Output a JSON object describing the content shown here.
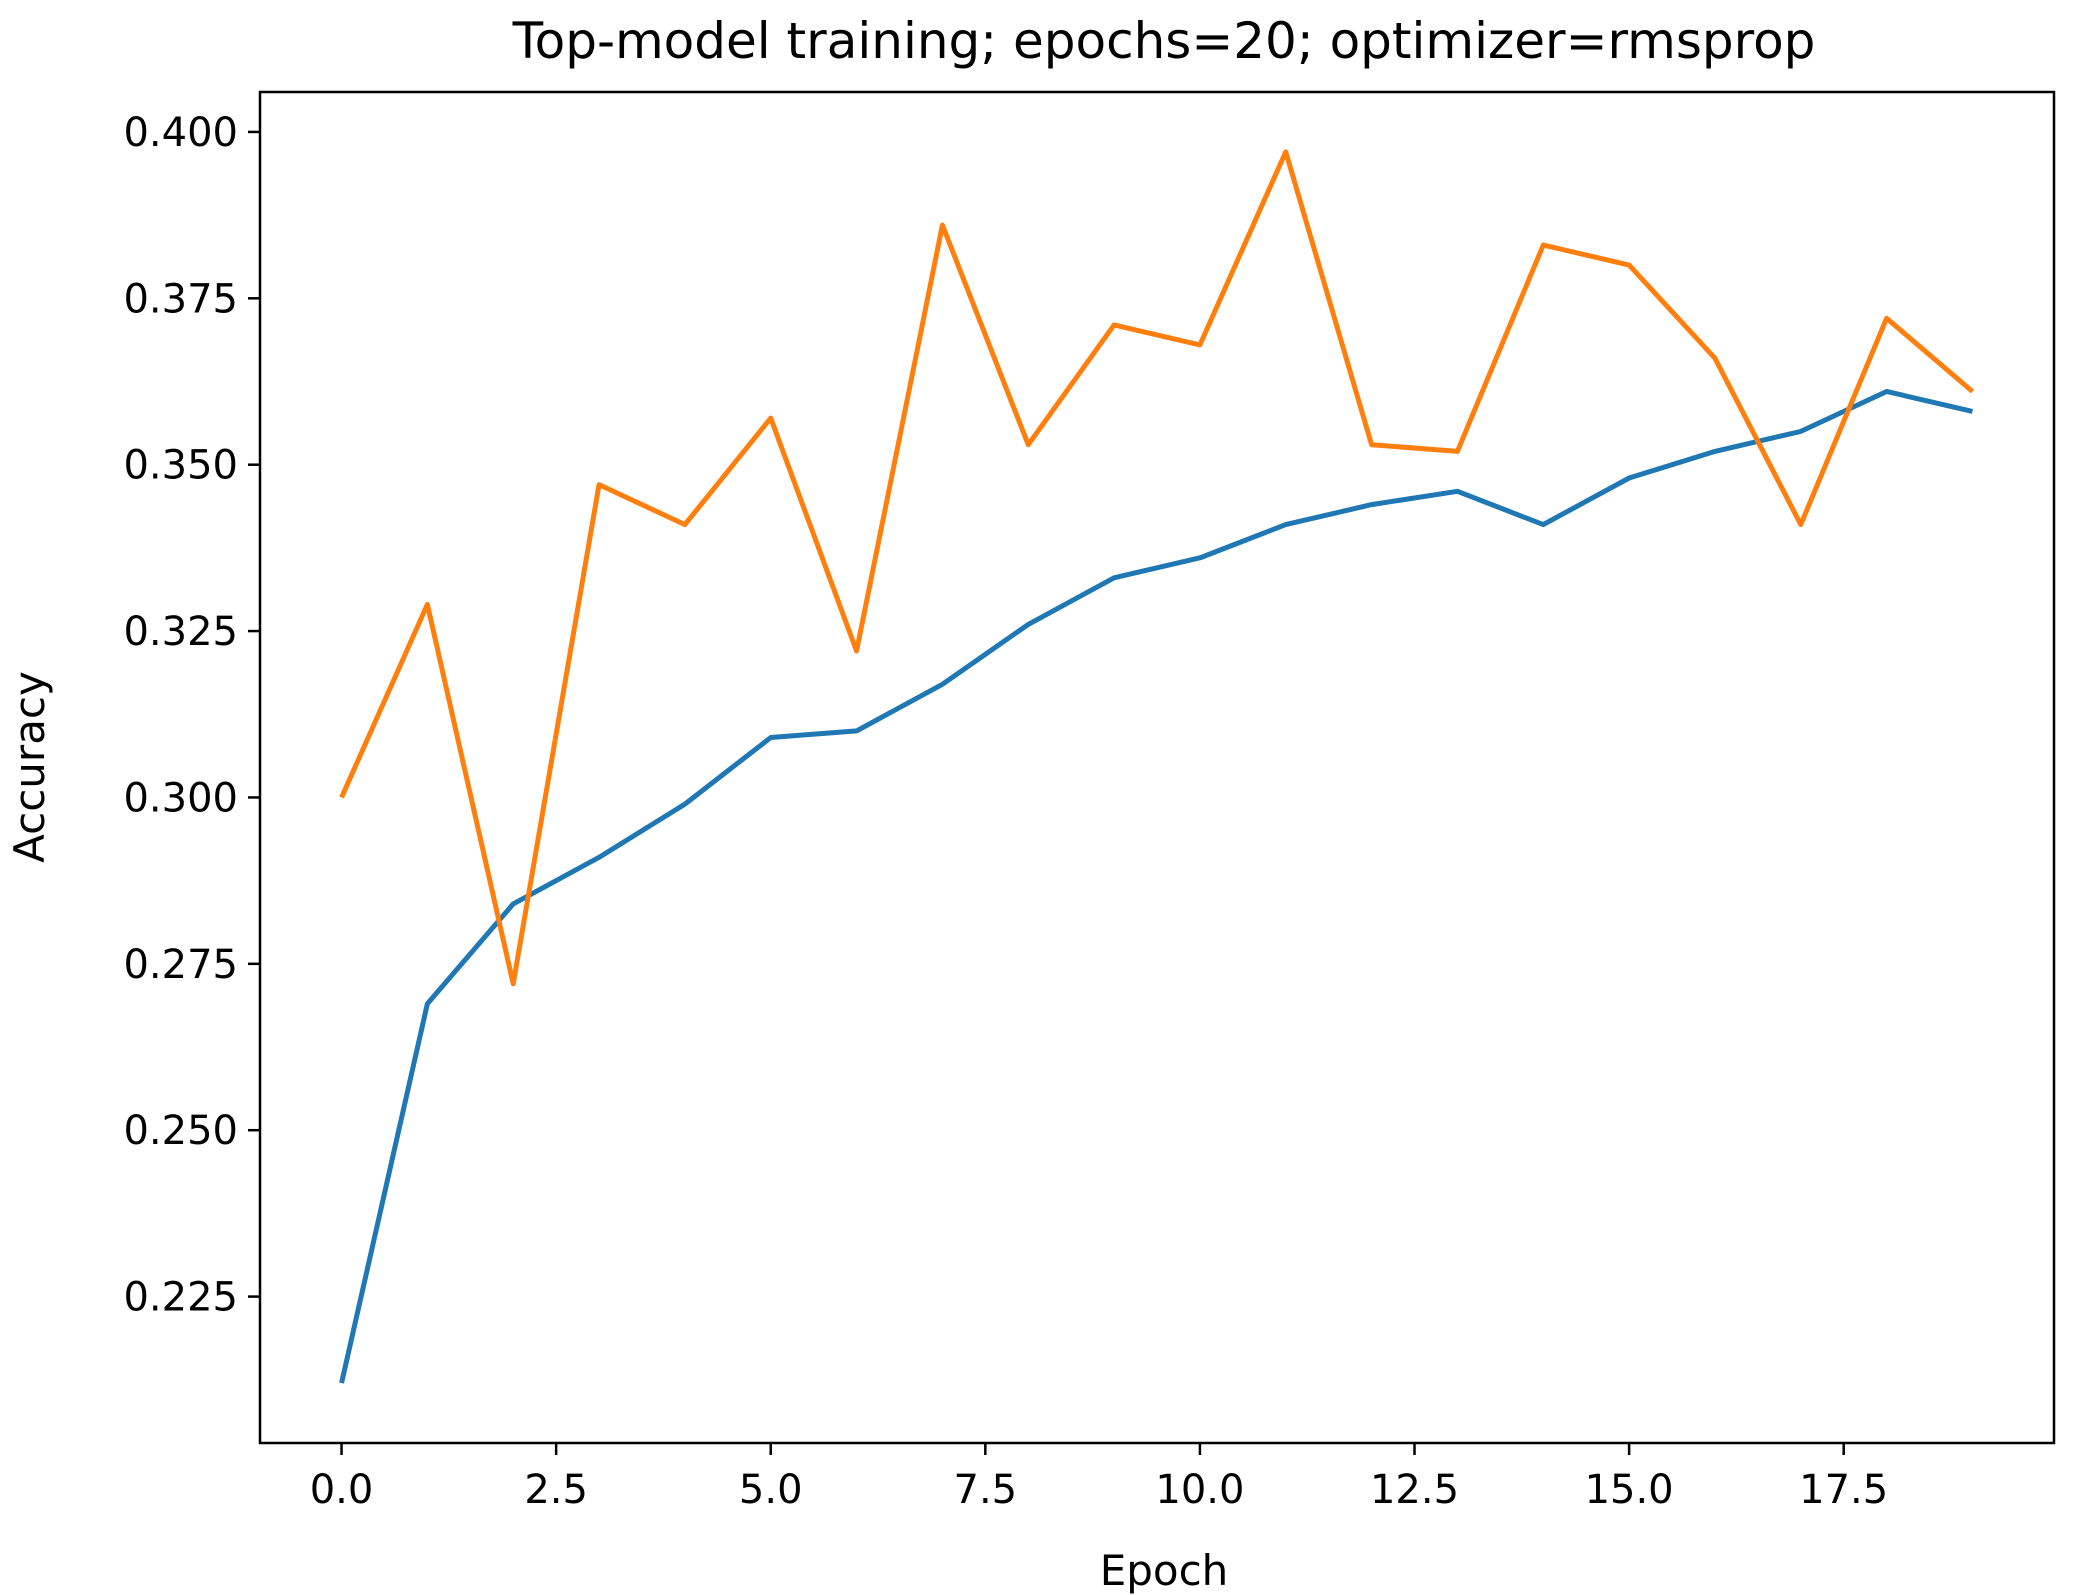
{
  "chart_data": {
    "type": "line",
    "title": "Top-model training; epochs=20; optimizer=rmsprop",
    "xlabel": "Epoch",
    "ylabel": "Accuracy",
    "xlim": [
      -0.95,
      19.95
    ],
    "ylim": [
      0.203,
      0.406
    ],
    "xticks": [
      0.0,
      2.5,
      5.0,
      7.5,
      10.0,
      12.5,
      15.0,
      17.5
    ],
    "xtick_labels": [
      "0.0",
      "2.5",
      "5.0",
      "7.5",
      "10.0",
      "12.5",
      "15.0",
      "17.5"
    ],
    "yticks": [
      0.225,
      0.25,
      0.275,
      0.3,
      0.325,
      0.35,
      0.375,
      0.4
    ],
    "ytick_labels": [
      "0.225",
      "0.250",
      "0.275",
      "0.300",
      "0.325",
      "0.350",
      "0.375",
      "0.400"
    ],
    "grid": false,
    "x": [
      0,
      1,
      2,
      3,
      4,
      5,
      6,
      7,
      8,
      9,
      10,
      11,
      12,
      13,
      14,
      15,
      16,
      17,
      18,
      19
    ],
    "series": [
      {
        "color": "#1f77b4",
        "values": [
          0.212,
          0.269,
          0.284,
          0.291,
          0.299,
          0.309,
          0.31,
          0.317,
          0.326,
          0.333,
          0.336,
          0.341,
          0.344,
          0.346,
          0.341,
          0.348,
          0.352,
          0.355,
          0.361,
          0.358
        ]
      },
      {
        "color": "#ff7f0e",
        "values": [
          0.3,
          0.329,
          0.272,
          0.347,
          0.341,
          0.357,
          0.322,
          0.386,
          0.353,
          0.371,
          0.368,
          0.397,
          0.353,
          0.352,
          0.383,
          0.38,
          0.366,
          0.341,
          0.372,
          0.361
        ]
      }
    ]
  }
}
